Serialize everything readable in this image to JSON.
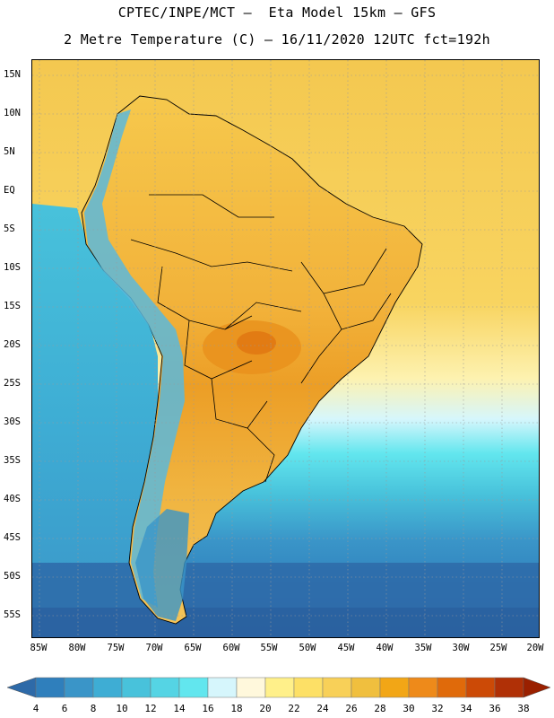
{
  "title": {
    "line1": "CPTEC/INPE/MCT –  Eta Model 15km – GFS",
    "line2": "2 Metre Temperature (C) – 16/11/2020 12UTC fct=192h"
  },
  "lat_labels": [
    "15N",
    "10N",
    "5N",
    "EQ",
    "5S",
    "10S",
    "15S",
    "20S",
    "25S",
    "30S",
    "35S",
    "40S",
    "45S",
    "50S",
    "55S"
  ],
  "lon_labels": [
    "85W",
    "80W",
    "75W",
    "70W",
    "65W",
    "60W",
    "55W",
    "50W",
    "45W",
    "40W",
    "35W",
    "30W",
    "25W",
    "20W"
  ],
  "colorbar": {
    "levels": [
      "4",
      "6",
      "8",
      "10",
      "12",
      "14",
      "16",
      "18",
      "20",
      "22",
      "24",
      "26",
      "28",
      "30",
      "32",
      "34",
      "36",
      "38"
    ],
    "colors": [
      "#2e6aa8",
      "#2f7fbc",
      "#3a95c8",
      "#3eadd4",
      "#48c2db",
      "#55d4e4",
      "#62e6ee",
      "#d6f6fc",
      "#fff8dc",
      "#fff08a",
      "#fde066",
      "#f8d058",
      "#f0bf3e",
      "#f2a616",
      "#ee8a1a",
      "#e06a0a",
      "#cc4a06",
      "#b03006",
      "#9a2000"
    ]
  },
  "colors": {
    "ocean_warm": "#f4cc58",
    "land_warm": "#f2b840",
    "land_hot": "#e99a20",
    "andes": "#5ab8dc",
    "ocean_cold": "#2f6cab"
  }
}
